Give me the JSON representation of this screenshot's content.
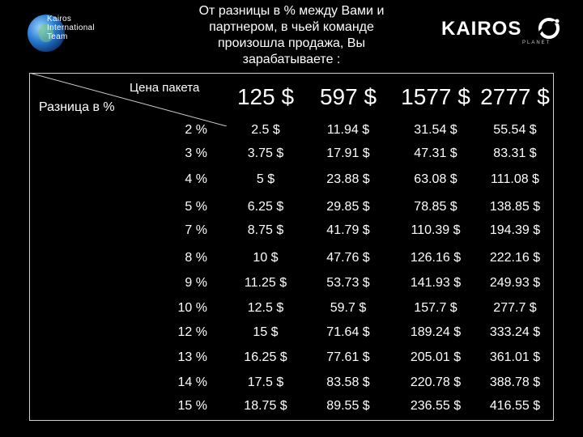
{
  "logo_left": {
    "lines": [
      "Kairos",
      "International",
      "Team"
    ]
  },
  "title": {
    "lines": [
      "От разницы в %  между Вами и",
      "партнером, в чьей команде",
      "произошла продажа, Вы",
      "зарабатываете :"
    ]
  },
  "logo_right": {
    "word": "KAIROS",
    "sub": "PLANET"
  },
  "table": {
    "price_label": "Цена пакета",
    "diff_label": "Разница в %",
    "packages": [
      "125 $",
      "597 $",
      "1577 $",
      "2777 $"
    ],
    "rows": [
      {
        "pct": "2 %",
        "values": [
          "2.5 $",
          "11.94 $",
          "31.54 $",
          "55.54 $"
        ]
      },
      {
        "pct": "3 %",
        "values": [
          "3.75 $",
          "17.91 $",
          "47.31 $",
          "83.31 $"
        ]
      },
      {
        "pct": "4 %",
        "values": [
          "5 $",
          "23.88 $",
          "63.08 $",
          "111.08 $"
        ]
      },
      {
        "pct": "5 %",
        "values": [
          "6.25 $",
          "29.85 $",
          "78.85 $",
          "138.85 $"
        ]
      },
      {
        "pct": "7 %",
        "values": [
          "8.75 $",
          "41.79 $",
          "110.39 $",
          "194.39 $"
        ]
      },
      {
        "pct": "8 %",
        "values": [
          "10 $",
          "47.76 $",
          "126.16 $",
          "222.16 $"
        ]
      },
      {
        "pct": "9 %",
        "values": [
          "11.25 $",
          "53.73 $",
          "141.93 $",
          "249.93 $"
        ]
      },
      {
        "pct": "10 %",
        "values": [
          "12.5 $",
          "59.7 $",
          "157.7 $",
          "277.7 $"
        ]
      },
      {
        "pct": "12 %",
        "values": [
          "15 $",
          "71.64 $",
          "189.24 $",
          "333.24 $"
        ]
      },
      {
        "pct": "13 %",
        "values": [
          "16.25 $",
          "77.61 $",
          "205.01 $",
          "361.01 $"
        ]
      },
      {
        "pct": "14 %",
        "values": [
          "17.5 $",
          "83.58 $",
          "220.78 $",
          "388.78 $"
        ]
      },
      {
        "pct": "15 %",
        "values": [
          "18.75 $",
          "89.55 $",
          "236.55 $",
          "416.55 $"
        ]
      }
    ]
  }
}
